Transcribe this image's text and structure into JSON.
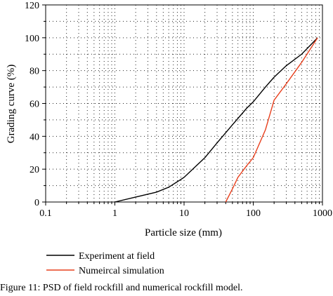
{
  "chart_data": {
    "type": "line",
    "title": "",
    "xlabel": "Particle size (mm)",
    "ylabel": "Grading curve (%)",
    "x_scale": "log",
    "xlim": [
      0.1,
      1000
    ],
    "ylim": [
      0,
      120
    ],
    "x_ticks": [
      0.1,
      1,
      10,
      100,
      1000
    ],
    "x_tick_labels": [
      "0.1",
      "1",
      "10",
      "100",
      "1000"
    ],
    "y_ticks": [
      0,
      20,
      40,
      60,
      80,
      100,
      120
    ],
    "y_tick_labels": [
      "0",
      "20",
      "40",
      "60",
      "80",
      "100",
      "120"
    ],
    "grid": true,
    "legend_position": "bottom-left, below plot",
    "series": [
      {
        "name": "Experiment at field",
        "color": "#000000",
        "points": [
          [
            1,
            0
          ],
          [
            2,
            3
          ],
          [
            4,
            6
          ],
          [
            6,
            9
          ],
          [
            10,
            15
          ],
          [
            20,
            27
          ],
          [
            30,
            36
          ],
          [
            50,
            47
          ],
          [
            80,
            57
          ],
          [
            100,
            61
          ],
          [
            150,
            70
          ],
          [
            200,
            76
          ],
          [
            300,
            83
          ],
          [
            500,
            90
          ],
          [
            850,
            100
          ]
        ]
      },
      {
        "name": "Numeircal simulation",
        "color": "#e8401e",
        "points": [
          [
            40,
            0
          ],
          [
            50,
            8
          ],
          [
            60,
            15
          ],
          [
            80,
            22
          ],
          [
            100,
            27
          ],
          [
            150,
            44
          ],
          [
            200,
            62
          ],
          [
            300,
            72
          ],
          [
            500,
            85
          ],
          [
            850,
            100
          ]
        ]
      }
    ]
  },
  "caption": "Figure 11: PSD of field rockfill and numerical rockfill model."
}
